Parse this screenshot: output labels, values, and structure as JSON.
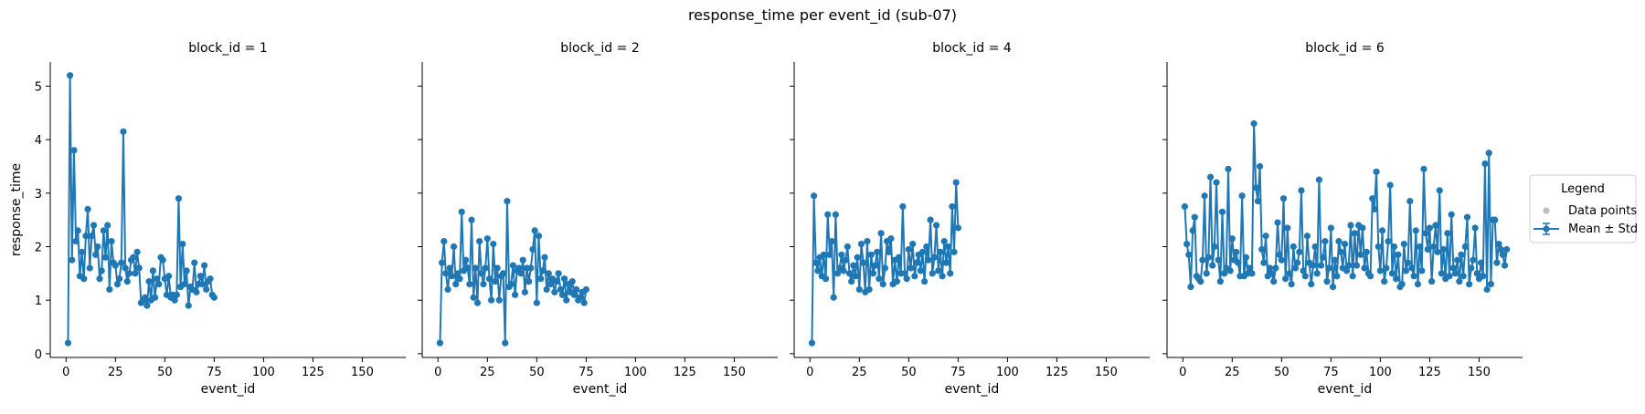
{
  "chart_data": {
    "type": "line",
    "title": "response_time per event_id (sub-07)",
    "xlabel": "event_id",
    "ylabel": "response_time",
    "xlim": [
      -8,
      172
    ],
    "ylim": [
      -0.07,
      5.45
    ],
    "xticks": [
      0,
      25,
      50,
      75,
      100,
      125,
      150
    ],
    "yticks": [
      0,
      1,
      2,
      3,
      4,
      5
    ],
    "grid": false,
    "series_color": "#1f77b4",
    "legend": {
      "title": "Legend",
      "placement": "right",
      "items": [
        {
          "label": "Data points",
          "marker": "grey-dot"
        },
        {
          "label": "Mean ± Std",
          "marker": "line-errorbar"
        }
      ]
    },
    "facets": [
      {
        "title": "block_id = 1",
        "y": [
          0.2,
          5.2,
          1.75,
          3.8,
          2.1,
          2.3,
          1.45,
          1.9,
          1.4,
          2.2,
          2.7,
          1.6,
          2.2,
          2.4,
          1.85,
          2.0,
          1.4,
          1.55,
          2.3,
          1.8,
          2.4,
          1.2,
          2.1,
          1.7,
          1.65,
          1.3,
          1.4,
          1.7,
          4.15,
          1.6,
          1.35,
          1.5,
          1.75,
          1.8,
          1.5,
          1.9,
          1.6,
          0.95,
          1.0,
          1.05,
          0.9,
          1.35,
          1.0,
          1.55,
          1.05,
          1.4,
          1.3,
          1.8,
          1.75,
          1.4,
          1.1,
          1.45,
          1.05,
          1.1,
          1.0,
          1.1,
          2.9,
          1.25,
          2.05,
          1.3,
          1.55,
          0.9,
          1.25,
          1.2,
          1.7,
          1.15,
          1.3,
          1.45,
          1.3,
          1.65,
          1.2,
          1.35,
          1.4,
          1.1,
          1.05
        ]
      },
      {
        "title": "block_id = 2",
        "y": [
          0.2,
          1.7,
          2.1,
          1.5,
          1.2,
          1.6,
          1.45,
          2.0,
          1.3,
          1.5,
          1.4,
          2.65,
          1.55,
          1.75,
          1.6,
          1.3,
          2.5,
          1.05,
          1.6,
          0.95,
          2.1,
          1.5,
          1.3,
          1.6,
          2.15,
          1.4,
          1.0,
          2.05,
          1.35,
          1.6,
          1.0,
          1.45,
          1.5,
          0.2,
          2.85,
          1.25,
          1.3,
          1.65,
          1.1,
          1.55,
          1.6,
          1.5,
          1.75,
          1.15,
          1.6,
          1.35,
          1.6,
          1.95,
          2.3,
          0.95,
          2.2,
          1.4,
          1.55,
          1.8,
          1.2,
          1.5,
          1.3,
          1.4,
          1.15,
          1.35,
          1.5,
          1.2,
          1.1,
          1.4,
          1.0,
          1.3,
          1.15,
          1.35,
          1.1,
          1.2,
          1.0,
          1.05,
          1.15,
          0.95,
          1.2
        ]
      },
      {
        "title": "block_id = 4",
        "y": [
          0.2,
          2.95,
          1.7,
          1.55,
          1.8,
          1.45,
          1.85,
          1.4,
          2.6,
          1.85,
          2.1,
          1.05,
          2.6,
          1.5,
          1.6,
          1.85,
          1.55,
          1.75,
          2.0,
          1.5,
          1.35,
          1.65,
          1.45,
          1.8,
          1.2,
          2.05,
          1.7,
          1.15,
          2.1,
          1.2,
          1.85,
          1.5,
          1.65,
          1.9,
          1.4,
          2.25,
          1.3,
          1.6,
          2.1,
          1.9,
          2.15,
          1.3,
          1.75,
          1.35,
          1.8,
          1.5,
          2.75,
          1.5,
          1.4,
          1.95,
          1.6,
          2.05,
          1.45,
          1.7,
          1.85,
          1.55,
          1.9,
          1.35,
          2.0,
          1.75,
          2.5,
          1.5,
          1.8,
          2.4,
          1.55,
          1.9,
          1.45,
          2.1,
          1.7,
          2.0,
          1.5,
          2.75,
          1.9,
          3.2,
          2.35
        ]
      },
      {
        "title": "block_id = 6",
        "y": [
          2.75,
          2.05,
          1.85,
          1.25,
          2.3,
          2.55,
          1.45,
          1.4,
          1.35,
          1.75,
          2.95,
          1.5,
          1.8,
          3.3,
          1.65,
          2.0,
          3.2,
          1.75,
          1.35,
          2.65,
          1.5,
          1.6,
          3.45,
          1.55,
          2.15,
          1.75,
          1.9,
          1.7,
          1.45,
          2.95,
          1.45,
          1.8,
          1.5,
          1.6,
          1.5,
          4.3,
          3.1,
          2.85,
          3.5,
          1.95,
          1.7,
          2.2,
          1.45,
          1.6,
          1.5,
          1.35,
          1.6,
          2.45,
          1.85,
          1.75,
          2.9,
          1.4,
          2.35,
          1.5,
          1.3,
          2.0,
          1.6,
          1.7,
          1.9,
          3.05,
          1.55,
          1.45,
          2.2,
          1.7,
          1.3,
          1.65,
          2.0,
          1.5,
          3.25,
          1.65,
          1.8,
          2.1,
          1.35,
          1.6,
          2.35,
          1.25,
          1.75,
          1.45,
          2.1,
          1.9,
          1.6,
          2.05,
          1.55,
          1.65,
          2.4,
          1.45,
          2.25,
          1.65,
          2.4,
          1.85,
          2.35,
          1.6,
          1.9,
          1.5,
          1.45,
          2.9,
          2.7,
          3.4,
          2.0,
          1.55,
          2.3,
          1.35,
          1.6,
          2.1,
          3.15,
          1.5,
          2.0,
          1.4,
          1.85,
          1.25,
          1.3,
          2.05,
          1.55,
          1.7,
          2.85,
          1.6,
          1.45,
          2.3,
          1.3,
          2.0,
          1.55,
          3.45,
          2.25,
          1.95,
          2.35,
          1.35,
          2.0,
          2.4,
          1.9,
          3.05,
          1.5,
          1.95,
          1.4,
          2.25,
          1.45,
          2.6,
          1.6,
          1.5,
          1.75,
          1.35,
          1.85,
          1.45,
          2.0,
          2.55,
          1.3,
          1.6,
          1.75,
          2.35,
          1.5,
          1.4,
          1.7,
          1.45,
          3.55,
          1.2,
          3.75,
          1.3,
          2.5,
          2.5,
          1.7,
          2.05,
          1.95,
          1.85,
          1.65,
          1.95
        ]
      }
    ]
  }
}
